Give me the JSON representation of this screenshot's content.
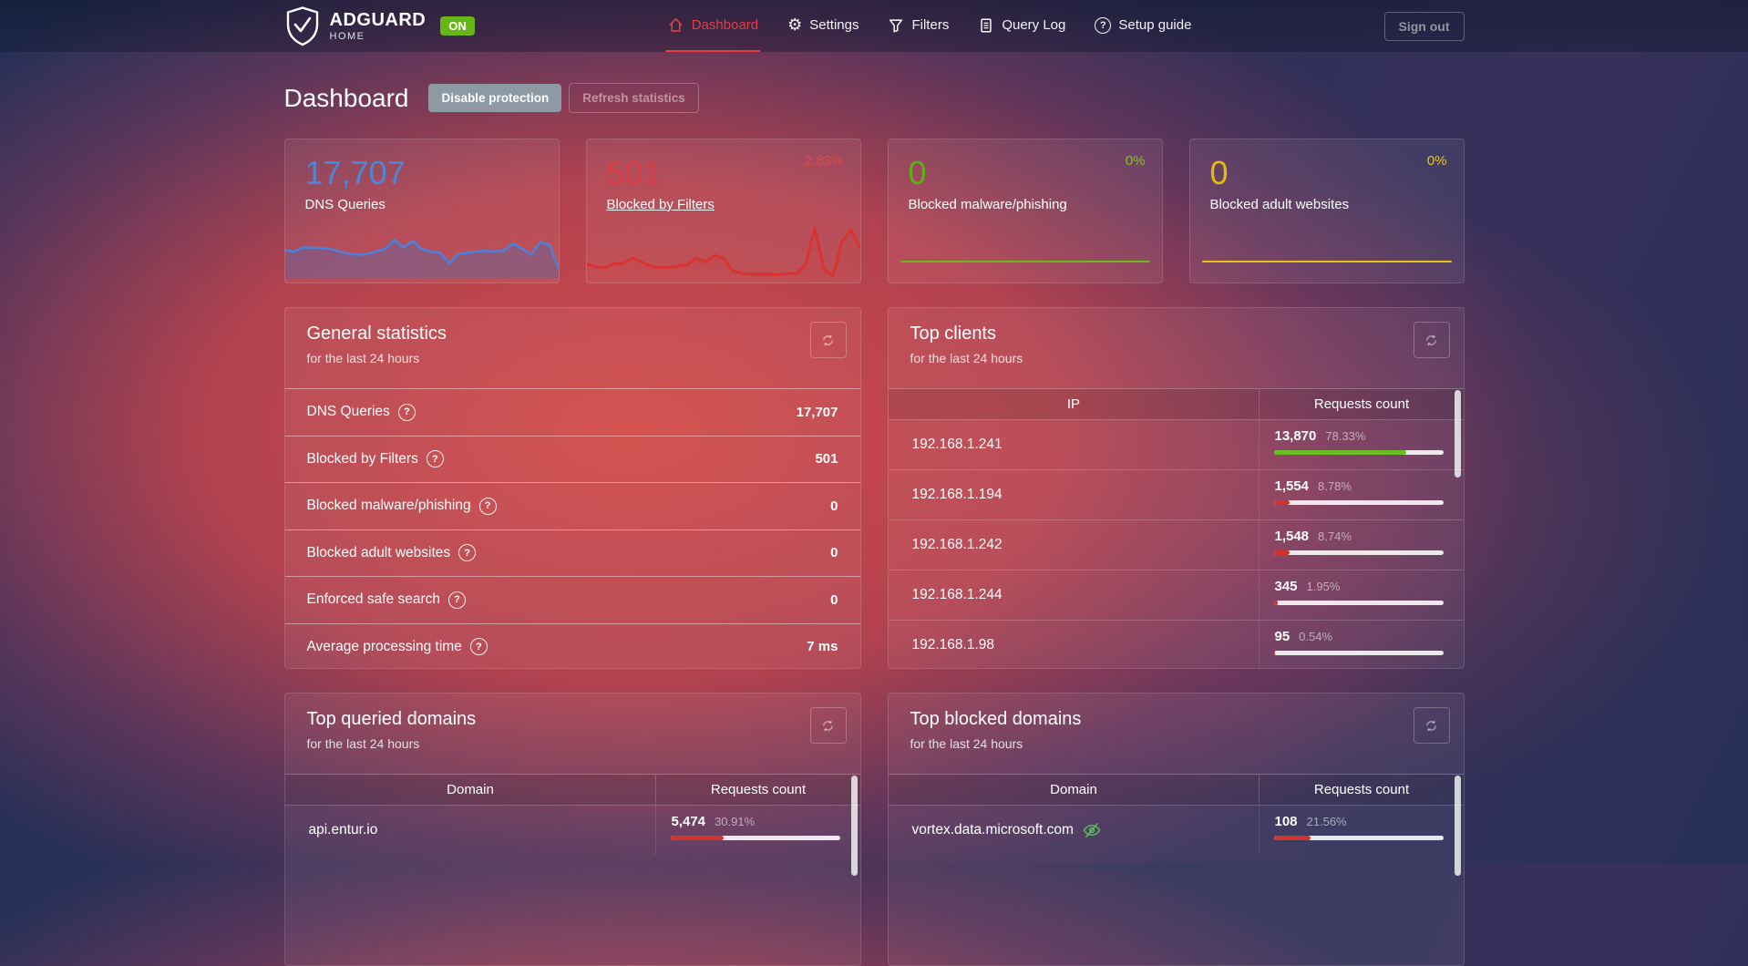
{
  "icons": {
    "help_glyph": "?",
    "gear_glyph": "⚙"
  },
  "topbar": {
    "brand": {
      "name": "ADGUARD",
      "sub": "HOME",
      "status_badge": "ON"
    },
    "nav": [
      {
        "label": "Dashboard",
        "active": true
      },
      {
        "label": "Settings",
        "active": false
      },
      {
        "label": "Filters",
        "active": false
      },
      {
        "label": "Query Log",
        "active": false
      },
      {
        "label": "Setup guide",
        "active": false
      }
    ],
    "sign_out_label": "Sign out"
  },
  "header": {
    "title": "Dashboard",
    "disable_protection_label": "Disable protection",
    "refresh_statistics_label": "Refresh statistics"
  },
  "stat_cards": [
    {
      "value": "17,707",
      "label": "DNS Queries",
      "value_color": "#4a87d9",
      "spark": [
        52,
        49,
        57,
        56,
        56,
        54,
        49,
        45,
        43,
        45,
        49,
        55,
        71,
        57,
        69,
        54,
        49,
        47,
        27,
        45,
        47,
        49,
        51,
        49,
        52,
        64,
        54,
        44,
        67,
        61,
        18
      ],
      "spark_color": "#4a82dd",
      "spark_fill": "rgba(70,105,180,0.35)"
    },
    {
      "value": "501",
      "label": "Blocked by Filters",
      "percent": "2.83%",
      "value_color": "#dd3d42",
      "percent_color": "#dd4a4a",
      "spark": [
        22,
        18,
        17,
        23,
        23,
        31,
        25,
        19,
        17,
        17,
        19,
        21,
        31,
        25,
        35,
        31,
        12,
        8,
        7,
        7,
        7,
        6,
        8,
        8,
        21,
        76,
        14,
        5,
        56,
        73,
        45
      ],
      "spark_color": "#d8332e",
      "spark_fill": "rgba(216,51,46,0.12)"
    },
    {
      "value": "0",
      "label": "Blocked malware/phishing",
      "percent": "0%",
      "value_color": "#5db015",
      "percent_color": "#86c224",
      "line_color": "#6ab81c"
    },
    {
      "value": "0",
      "label": "Blocked adult websites",
      "percent": "0%",
      "value_color": "#e3bb0f",
      "percent_color": "#e8c61e",
      "line_color": "#e8c11c"
    }
  ],
  "general_statistics": {
    "title": "General statistics",
    "subtitle": "for the last 24 hours",
    "rows": [
      {
        "label": "DNS Queries",
        "value": "17,707"
      },
      {
        "label": "Blocked by Filters",
        "value": "501"
      },
      {
        "label": "Blocked malware/phishing",
        "value": "0"
      },
      {
        "label": "Blocked adult websites",
        "value": "0"
      },
      {
        "label": "Enforced safe search",
        "value": "0"
      },
      {
        "label": "Average processing time",
        "value": "7 ms"
      }
    ]
  },
  "top_clients": {
    "title": "Top clients",
    "subtitle": "for the last 24 hours",
    "columns": [
      "IP",
      "Requests count"
    ],
    "rows": [
      {
        "ip": "192.168.1.241",
        "count": "13,870",
        "percent": "78.33%",
        "bar_color": "#6cbb28"
      },
      {
        "ip": "192.168.1.194",
        "count": "1,554",
        "percent": "8.78%",
        "bar_color": "#d2342b"
      },
      {
        "ip": "192.168.1.242",
        "count": "1,548",
        "percent": "8.74%",
        "bar_color": "#d2342b"
      },
      {
        "ip": "192.168.1.244",
        "count": "345",
        "percent": "1.95%",
        "bar_color": "#d2342b"
      },
      {
        "ip": "192.168.1.98",
        "count": "95",
        "percent": "0.54%",
        "bar_color": "#d2342b"
      }
    ]
  },
  "top_queried_domains": {
    "title": "Top queried domains",
    "subtitle": "for the last 24 hours",
    "columns": [
      "Domain",
      "Requests count"
    ],
    "rows": [
      {
        "domain": "api.entur.io",
        "count": "5,474",
        "percent": "30.91%",
        "bar_color": "#d2342b"
      }
    ]
  },
  "top_blocked_domains": {
    "title": "Top blocked domains",
    "subtitle": "for the last 24 hours",
    "columns": [
      "Domain",
      "Requests count"
    ],
    "rows": [
      {
        "domain": "vortex.data.microsoft.com",
        "count": "108",
        "percent": "21.56%",
        "bar_color": "#d2342b"
      }
    ]
  },
  "chart_data": [
    {
      "type": "line",
      "title": "DNS Queries sparkline",
      "note": "relative values, no axes shown",
      "series": [
        {
          "name": "DNS Queries",
          "values": [
            52,
            49,
            57,
            56,
            56,
            54,
            49,
            45,
            43,
            45,
            49,
            55,
            71,
            57,
            69,
            54,
            49,
            47,
            27,
            45,
            47,
            49,
            51,
            49,
            52,
            64,
            54,
            44,
            67,
            61,
            18
          ]
        }
      ]
    },
    {
      "type": "line",
      "title": "Blocked by Filters sparkline",
      "note": "relative values, no axes shown",
      "series": [
        {
          "name": "Blocked by Filters",
          "values": [
            22,
            18,
            17,
            23,
            23,
            31,
            25,
            19,
            17,
            17,
            19,
            21,
            31,
            25,
            35,
            31,
            12,
            8,
            7,
            7,
            7,
            6,
            8,
            8,
            21,
            76,
            14,
            5,
            56,
            73,
            45
          ]
        }
      ]
    },
    {
      "type": "line",
      "title": "Blocked malware/phishing sparkline",
      "series": [
        {
          "name": "Blocked malware/phishing",
          "values": [
            0
          ]
        }
      ]
    },
    {
      "type": "line",
      "title": "Blocked adult websites sparkline",
      "series": [
        {
          "name": "Blocked adult websites",
          "values": [
            0
          ]
        }
      ]
    }
  ]
}
